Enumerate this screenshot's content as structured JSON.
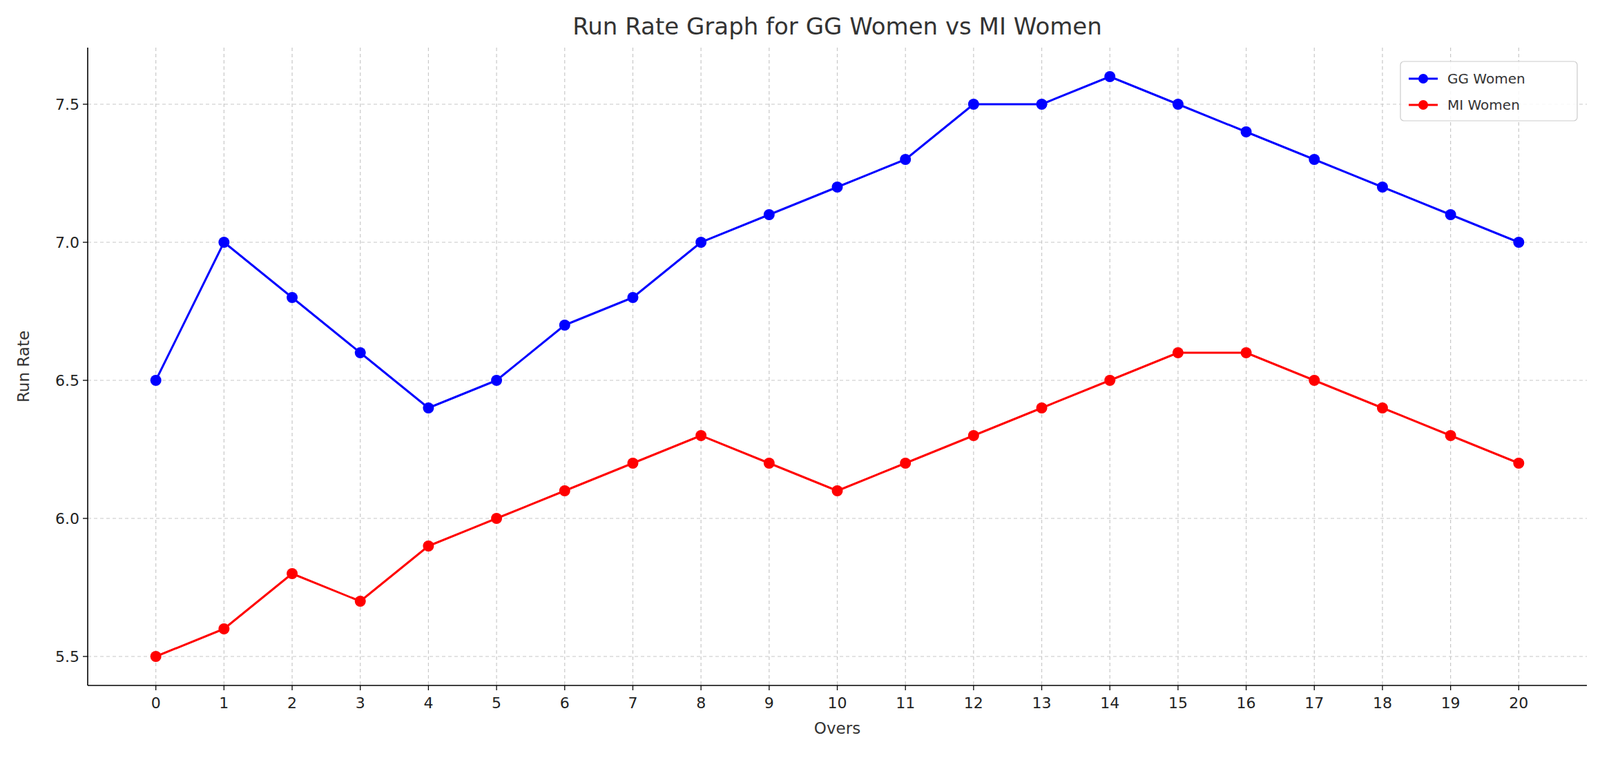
{
  "chart_data": {
    "type": "line",
    "title": "Run Rate Graph for GG Women vs MI Women",
    "x_label": "Overs",
    "y_label": "Run Rate",
    "x": [
      0,
      1,
      2,
      3,
      4,
      5,
      6,
      7,
      8,
      9,
      10,
      11,
      12,
      13,
      14,
      15,
      16,
      17,
      18,
      19,
      20
    ],
    "series": [
      {
        "name": "GG Women",
        "color": "#0000ff",
        "marker": "circle",
        "line_style": "solid",
        "values": [
          6.5,
          7.0,
          6.8,
          6.6,
          6.4,
          6.5,
          6.7,
          6.8,
          7.0,
          7.1,
          7.2,
          7.3,
          7.5,
          7.5,
          7.6,
          7.5,
          7.4,
          7.3,
          7.2,
          7.1,
          7.0
        ]
      },
      {
        "name": "MI Women",
        "color": "#ff0000",
        "marker": "circle",
        "line_style": "solid",
        "values": [
          5.5,
          5.6,
          5.8,
          5.7,
          5.9,
          6.0,
          6.1,
          6.2,
          6.3,
          6.2,
          6.1,
          6.2,
          6.3,
          6.4,
          6.5,
          6.6,
          6.6,
          6.5,
          6.4,
          6.3,
          6.2
        ]
      }
    ],
    "xlim": [
      -1,
      21
    ],
    "xticks": [
      0,
      1,
      2,
      3,
      4,
      5,
      6,
      7,
      8,
      9,
      10,
      11,
      12,
      13,
      14,
      15,
      16,
      17,
      18,
      19,
      20
    ],
    "ylim": [
      5.395,
      7.705
    ],
    "yticks": [
      5.5,
      {
        "value": 6,
        "label": "6.0"
      },
      6.5,
      {
        "value": 7,
        "label": "7.0"
      },
      7.5
    ],
    "grid": true,
    "legend": "upper right"
  }
}
